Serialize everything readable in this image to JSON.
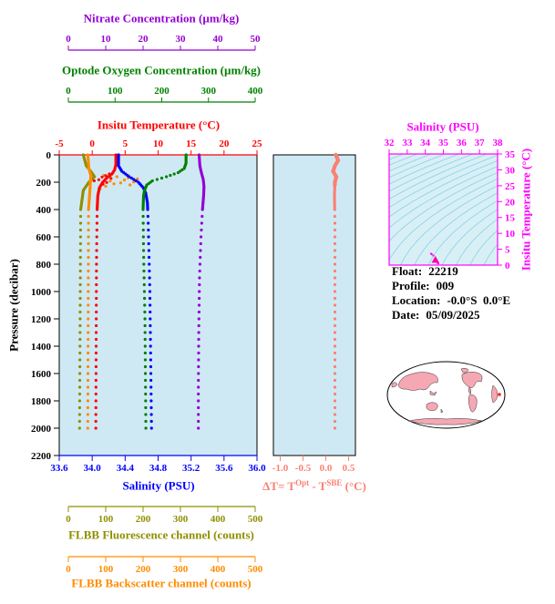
{
  "colors": {
    "plot_bg": "#cfe9f4",
    "pressure_axis": "#000000",
    "nitrate": "#9400d3",
    "oxygen": "#008000",
    "temperature": "#ff0000",
    "salinity": "#0000ff",
    "fluorescence": "#8f8f00",
    "backscatter": "#ff8c00",
    "delta": "#fa8072",
    "ts_axis": "#ff00ff",
    "ts_contour": "#86d2e4",
    "ts_bg": "#d9eff6",
    "ts_marker": "#ff00aa",
    "map_land": "#f5a8b4",
    "map_marker": "#ff2020",
    "info_text": "#000000"
  },
  "info": {
    "float_label": "Float:",
    "float_value": "22219",
    "profile_label": "Profile:",
    "profile_value": "009",
    "location_label": "Location:",
    "location_value": "-0.0°S  0.0°E",
    "date_label": "Date:",
    "date_value": "05/09/2025"
  },
  "chart_data": [
    {
      "type": "scatter",
      "name": "profile-depth-plot",
      "ylabel": "Pressure (decibar)",
      "ylim": [
        0,
        2200
      ],
      "y_inverted": true,
      "y_ticks": [
        0,
        200,
        400,
        600,
        800,
        1000,
        1200,
        1400,
        1600,
        1800,
        2000,
        2200
      ],
      "sampling": {
        "dense_max": 400,
        "dense_step": 10,
        "sparse_step": 50,
        "max": 2000
      },
      "axes": [
        {
          "id": "nitrate",
          "label": "Nitrate Concentration (µm/kg)",
          "range": [
            0,
            50
          ],
          "tick_values": [
            0,
            10,
            20,
            30,
            40,
            50
          ],
          "tick_labels": [
            "0",
            "10",
            "20",
            "30",
            "40",
            "50"
          ]
        },
        {
          "id": "oxygen",
          "label": "Optode Oxygen Concentration (µm/kg)",
          "range": [
            0,
            400
          ],
          "tick_values": [
            0,
            100,
            200,
            300,
            400
          ],
          "tick_labels": [
            "0",
            "100",
            "200",
            "300",
            "400"
          ]
        },
        {
          "id": "temperature",
          "label": "Insitu Temperature (°C)",
          "range": [
            -5,
            25
          ],
          "tick_values": [
            -5,
            0,
            5,
            10,
            15,
            20,
            25
          ],
          "tick_labels": [
            "-5",
            "0",
            "5",
            "10",
            "15",
            "20",
            "25"
          ]
        },
        {
          "id": "salinity",
          "label": "Salinity (PSU)",
          "range": [
            33.6,
            36.0
          ],
          "tick_values": [
            33.6,
            34.0,
            34.4,
            34.8,
            35.2,
            35.6,
            36.0
          ],
          "tick_labels": [
            "33.6",
            "34.0",
            "34.4",
            "34.8",
            "35.2",
            "35.6",
            "36.0"
          ]
        },
        {
          "id": "fluorescence",
          "label": "FLBB Fluorescence channel (counts)",
          "range": [
            0,
            500
          ],
          "tick_values": [
            0,
            100,
            200,
            300,
            400,
            500
          ],
          "tick_labels": [
            "0",
            "100",
            "200",
            "300",
            "400",
            "500"
          ]
        },
        {
          "id": "backscatter",
          "label": "FLBB Backscatter channel (counts)",
          "range": [
            0,
            500
          ],
          "tick_values": [
            0,
            100,
            200,
            300,
            400,
            500
          ],
          "tick_labels": [
            "0",
            "100",
            "200",
            "300",
            "400",
            "500"
          ]
        }
      ],
      "series": [
        {
          "name": "fluorescence",
          "axis": "fluorescence",
          "profile": [
            [
              0,
              40
            ],
            [
              80,
              48
            ],
            [
              120,
              60
            ],
            [
              160,
              70
            ],
            [
              200,
              55
            ],
            [
              260,
              40
            ],
            [
              400,
              33
            ],
            [
              2000,
              30
            ]
          ]
        },
        {
          "name": "backscatter",
          "axis": "backscatter",
          "profile": [
            [
              0,
              52
            ],
            [
              100,
              55
            ],
            [
              150,
              60
            ],
            [
              250,
              58
            ],
            [
              400,
              54
            ],
            [
              2000,
              52
            ]
          ],
          "scatter": [
            [
              150,
              95
            ],
            [
              160,
              130
            ],
            [
              168,
              160
            ],
            [
              176,
              185
            ],
            [
              184,
              150
            ],
            [
              192,
              112
            ],
            [
              198,
              175
            ],
            [
              205,
              140
            ],
            [
              212,
              122
            ],
            [
              220,
              165
            ],
            [
              230,
              100
            ],
            [
              250,
              85
            ]
          ]
        },
        {
          "name": "temperature",
          "axis": "temperature",
          "profile": [
            [
              0,
              3.6
            ],
            [
              70,
              3.6
            ],
            [
              110,
              3.4
            ],
            [
              140,
              3.0
            ],
            [
              170,
              2.2
            ],
            [
              200,
              1.6
            ],
            [
              240,
              1.1
            ],
            [
              300,
              0.85
            ],
            [
              400,
              0.75
            ],
            [
              800,
              0.65
            ],
            [
              1400,
              0.6
            ],
            [
              2000,
              0.55
            ]
          ],
          "scatter": [
            [
              140,
              2.6
            ],
            [
              152,
              2.05
            ],
            [
              162,
              1.5
            ],
            [
              172,
              2.85
            ],
            [
              182,
              1.0
            ],
            [
              190,
              0.3
            ],
            [
              202,
              2.2
            ],
            [
              214,
              1.65
            ]
          ]
        },
        {
          "name": "salinity",
          "axis": "salinity",
          "profile": [
            [
              0,
              34.32
            ],
            [
              80,
              34.32
            ],
            [
              120,
              34.36
            ],
            [
              160,
              34.45
            ],
            [
              200,
              34.56
            ],
            [
              240,
              34.62
            ],
            [
              280,
              34.65
            ],
            [
              350,
              34.67
            ],
            [
              500,
              34.68
            ],
            [
              1000,
              34.7
            ],
            [
              1500,
              34.71
            ],
            [
              2000,
              34.72
            ]
          ]
        },
        {
          "name": "oxygen",
          "axis": "oxygen",
          "profile": [
            [
              0,
              252
            ],
            [
              60,
              252
            ],
            [
              100,
              248
            ],
            [
              130,
              235
            ],
            [
              160,
              210
            ],
            [
              190,
              180
            ],
            [
              220,
              168
            ],
            [
              260,
              163
            ],
            [
              300,
              161
            ],
            [
              400,
              160
            ],
            [
              700,
              161
            ],
            [
              1200,
              164
            ],
            [
              2000,
              166
            ]
          ]
        },
        {
          "name": "nitrate",
          "axis": "nitrate",
          "profile": [
            [
              0,
              35.0
            ],
            [
              80,
              35.2
            ],
            [
              130,
              35.6
            ],
            [
              180,
              36.1
            ],
            [
              230,
              36.3
            ],
            [
              300,
              36.2
            ],
            [
              400,
              35.9
            ],
            [
              600,
              35.5
            ],
            [
              900,
              35.1
            ],
            [
              1300,
              34.9
            ],
            [
              1700,
              34.8
            ],
            [
              2000,
              34.8
            ]
          ]
        }
      ]
    },
    {
      "type": "scatter",
      "name": "delta-t-plot",
      "xlabel_parts": {
        "pre": "ΔT= T",
        "sup1": "Opt",
        "mid": " - T",
        "sup2": "SBE",
        "post": " (°C)"
      },
      "xlim": [
        -1.15,
        0.65
      ],
      "x_tick_values": [
        -1.0,
        -0.5,
        0.0,
        0.5
      ],
      "x_tick_labels": [
        "-1.0",
        "-0.5",
        "0.0",
        "0.5"
      ],
      "ylim": [
        0,
        2200
      ],
      "profile": [
        [
          0,
          0.22
        ],
        [
          40,
          0.27
        ],
        [
          80,
          0.2
        ],
        [
          120,
          0.16
        ],
        [
          160,
          0.23
        ],
        [
          200,
          0.2
        ],
        [
          300,
          0.19
        ],
        [
          500,
          0.2
        ],
        [
          1000,
          0.2
        ],
        [
          1500,
          0.2
        ],
        [
          2000,
          0.2
        ]
      ]
    },
    {
      "type": "line",
      "name": "ts-diagram",
      "xlabel": "Salinity (PSU)",
      "xlim": [
        32,
        38
      ],
      "x_tick_values": [
        32,
        33,
        34,
        35,
        36,
        37,
        38
      ],
      "x_tick_labels": [
        "32",
        "33",
        "34",
        "35",
        "36",
        "37",
        "38"
      ],
      "ylabel": "Insitu Temperature (°C)",
      "ylim": [
        0,
        35
      ],
      "y_tick_values": [
        0,
        5,
        10,
        15,
        20,
        25,
        30,
        35
      ],
      "y_tick_labels": [
        "0",
        "5",
        "10",
        "15",
        "20",
        "25",
        "30",
        "35"
      ],
      "isopycnal_levels": [
        18,
        18.6,
        19.2,
        19.8,
        20.4,
        21,
        21.6,
        22.2,
        22.8,
        23.4,
        24,
        24.6,
        25.2,
        25.8,
        26.4,
        27,
        27.6,
        28.2,
        28.8,
        29.4,
        30
      ],
      "profile": [
        [
          34.32,
          3.6
        ],
        [
          34.36,
          3.4
        ],
        [
          34.45,
          3.0
        ],
        [
          34.56,
          1.6
        ],
        [
          34.62,
          1.1
        ],
        [
          34.66,
          0.85
        ],
        [
          34.68,
          0.75
        ],
        [
          34.7,
          0.65
        ],
        [
          34.72,
          0.55
        ]
      ],
      "marker": {
        "salinity": 34.56,
        "temperature": 1.6
      }
    }
  ]
}
